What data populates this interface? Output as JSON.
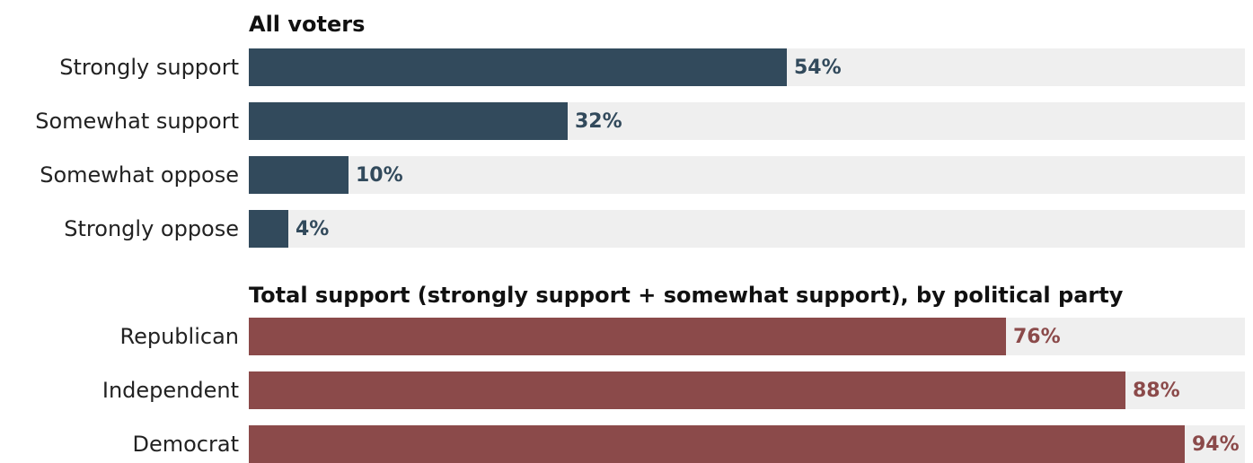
{
  "chart_data": [
    {
      "type": "bar",
      "orientation": "horizontal",
      "title": "All voters",
      "categories": [
        "Strongly support",
        "Somewhat support",
        "Somewhat oppose",
        "Strongly oppose"
      ],
      "values": [
        54,
        32,
        10,
        4
      ],
      "value_labels": [
        "54%",
        "32%",
        "10%",
        "4%"
      ],
      "xlim": [
        0,
        100
      ],
      "grid": false,
      "color": "#324a5c"
    },
    {
      "type": "bar",
      "orientation": "horizontal",
      "title": "Total support (strongly support + somewhat support), by political party",
      "categories": [
        "Republican",
        "Independent",
        "Democrat"
      ],
      "values": [
        76,
        88,
        94
      ],
      "value_labels": [
        "76%",
        "88%",
        "94%"
      ],
      "xlim": [
        0,
        100
      ],
      "grid": false,
      "color": "#8b4a4a"
    }
  ],
  "colors": {
    "track": "#efefef",
    "panel_1": "#324a5c",
    "panel_2": "#8b4a4a"
  }
}
